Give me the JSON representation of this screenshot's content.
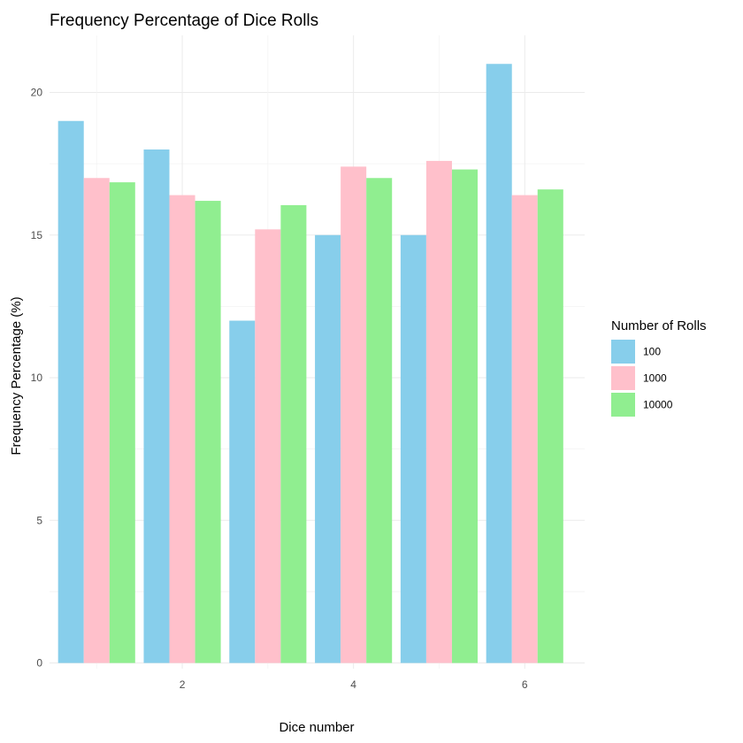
{
  "chart_data": {
    "type": "bar",
    "title": "Frequency Percentage of Dice Rolls",
    "xlabel": "Dice number",
    "ylabel": "Frequency Percentage (%)",
    "x": [
      1,
      2,
      3,
      4,
      5,
      6
    ],
    "x_tick_labels": [
      "2",
      "4",
      "6"
    ],
    "x_tick_values": [
      2,
      4,
      6
    ],
    "xlim": [
      0.45,
      6.7
    ],
    "ylim": [
      -0.2,
      22.0
    ],
    "y_ticks": [
      0,
      5,
      10,
      15,
      20
    ],
    "grid": true,
    "legend": {
      "title": "Number of Rolls",
      "position": "right"
    },
    "series": [
      {
        "name": "100",
        "color": "#87CEEB",
        "values": [
          19.0,
          18.0,
          12.0,
          15.0,
          15.0,
          21.0
        ]
      },
      {
        "name": "1000",
        "color": "#FFC0CB",
        "values": [
          17.0,
          16.4,
          15.2,
          17.4,
          17.6,
          16.4
        ]
      },
      {
        "name": "10000",
        "color": "#90EE90",
        "values": [
          16.85,
          16.2,
          16.05,
          17.0,
          17.3,
          16.6
        ]
      }
    ]
  }
}
